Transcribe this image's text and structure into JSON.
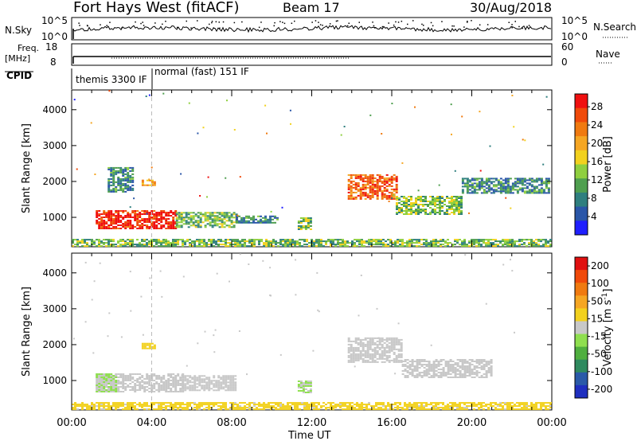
{
  "header": {
    "station": "Fort Hays West (fitACF)",
    "beam": "Beam 17",
    "date": "30/Aug/2018"
  },
  "top_panels": {
    "nsky_label": "N.Sky",
    "nsky_tick_top": "10^5",
    "nsky_tick_bottom": "10^0",
    "nsearch_label": "N.Search",
    "nsearch_tick_top": "10^5",
    "nsearch_tick_bottom": "10^0",
    "freq_label_line1": "Freq.",
    "freq_label_line2": "[MHz]",
    "freq_tick_top": "18",
    "freq_tick_bottom": "8",
    "nave_label": "Nave",
    "nave_tick_top": "60",
    "nave_tick_bottom": "0",
    "cpid_label": "CPID",
    "cpid_mode_1": "themis 3300 IF",
    "cpid_mode_2": "normal (fast) 151 IF"
  },
  "chart_data": [
    {
      "type": "heatmap",
      "panel": "power",
      "xlabel": "",
      "ylabel": "Slant Range [km]",
      "x_ticks": [
        "00:00",
        "04:00",
        "08:00",
        "12:00",
        "16:00",
        "20:00",
        "00:00"
      ],
      "y_ticks": [
        1000,
        2000,
        3000,
        4000
      ],
      "ylim": [
        180,
        4550
      ],
      "xlim_hours": [
        0,
        24
      ],
      "colorbar": {
        "label": "Power [dB]",
        "ticks": [
          "4",
          "8",
          "12",
          "16",
          "20",
          "24",
          "28"
        ],
        "range": [
          0,
          30
        ],
        "colors": [
          "#1f1fff",
          "#2a56a8",
          "#2f7f7f",
          "#4f9f4f",
          "#8fcf3f",
          "#f2d11e",
          "#f5a623",
          "#f07a10",
          "#f04a0a",
          "#f01010"
        ]
      },
      "regions": [
        {
          "t0": 1.2,
          "t1": 5.2,
          "r0": 700,
          "r1": 1200,
          "level": 28
        },
        {
          "t0": 5.2,
          "t1": 8.2,
          "r0": 750,
          "r1": 1150,
          "level": 12
        },
        {
          "t0": 8.2,
          "t1": 10.3,
          "r0": 850,
          "r1": 1050,
          "level": 8
        },
        {
          "t0": 1.8,
          "t1": 3.0,
          "r0": 1700,
          "r1": 2400,
          "level": 8
        },
        {
          "t0": 3.5,
          "t1": 4.2,
          "r0": 1900,
          "r1": 2050,
          "level": 20
        },
        {
          "t0": 11.3,
          "t1": 12.0,
          "r0": 650,
          "r1": 1000,
          "level": 12
        },
        {
          "t0": 13.8,
          "t1": 16.2,
          "r0": 1500,
          "r1": 2200,
          "level": 24
        },
        {
          "t0": 16.2,
          "t1": 19.5,
          "r0": 1100,
          "r1": 1600,
          "level": 12
        },
        {
          "t0": 19.5,
          "t1": 23.8,
          "r0": 1700,
          "r1": 2100,
          "level": 8
        },
        {
          "t0": 0,
          "t1": 24,
          "r0": 200,
          "r1": 400,
          "level": 12
        }
      ]
    },
    {
      "type": "heatmap",
      "panel": "velocity",
      "xlabel": "Time UT",
      "ylabel": "Slant Range [km]",
      "x_ticks": [
        "00:00",
        "04:00",
        "08:00",
        "12:00",
        "16:00",
        "20:00",
        "00:00"
      ],
      "y_ticks": [
        1000,
        2000,
        3000,
        4000
      ],
      "ylim": [
        180,
        4550
      ],
      "xlim_hours": [
        0,
        24
      ],
      "colorbar": {
        "label": "Velocity [m s^-1]",
        "ticks": [
          "200",
          "100",
          "50",
          "15",
          "-15",
          "-50",
          "-100",
          "-200"
        ],
        "range": [
          -250,
          250
        ],
        "colors": [
          "#1f2fbf",
          "#2a5aa8",
          "#2f8a5f",
          "#4faf3f",
          "#8fdf4f",
          "#c8c8c8",
          "#f2d11e",
          "#f5a623",
          "#f07a10",
          "#f04a0a",
          "#e01010"
        ]
      },
      "regions": [
        {
          "t0": 1.2,
          "t1": 5.5,
          "r0": 700,
          "r1": 1200,
          "level": 0
        },
        {
          "t0": 5.5,
          "t1": 8.2,
          "r0": 750,
          "r1": 1150,
          "level": 0
        },
        {
          "t0": 1.2,
          "t1": 2.2,
          "r0": 700,
          "r1": 1200,
          "level": 30
        },
        {
          "t0": 3.5,
          "t1": 4.2,
          "r0": 1900,
          "r1": 2050,
          "level": -40
        },
        {
          "t0": 11.3,
          "t1": 12.0,
          "r0": 650,
          "r1": 1000,
          "level": 30
        },
        {
          "t0": 13.8,
          "t1": 16.5,
          "r0": 1500,
          "r1": 2200,
          "level": 0
        },
        {
          "t0": 16.5,
          "t1": 21.0,
          "r0": 1100,
          "r1": 1600,
          "level": 0
        },
        {
          "t0": 0,
          "t1": 24,
          "r0": 200,
          "r1": 400,
          "level": -40
        }
      ]
    }
  ]
}
